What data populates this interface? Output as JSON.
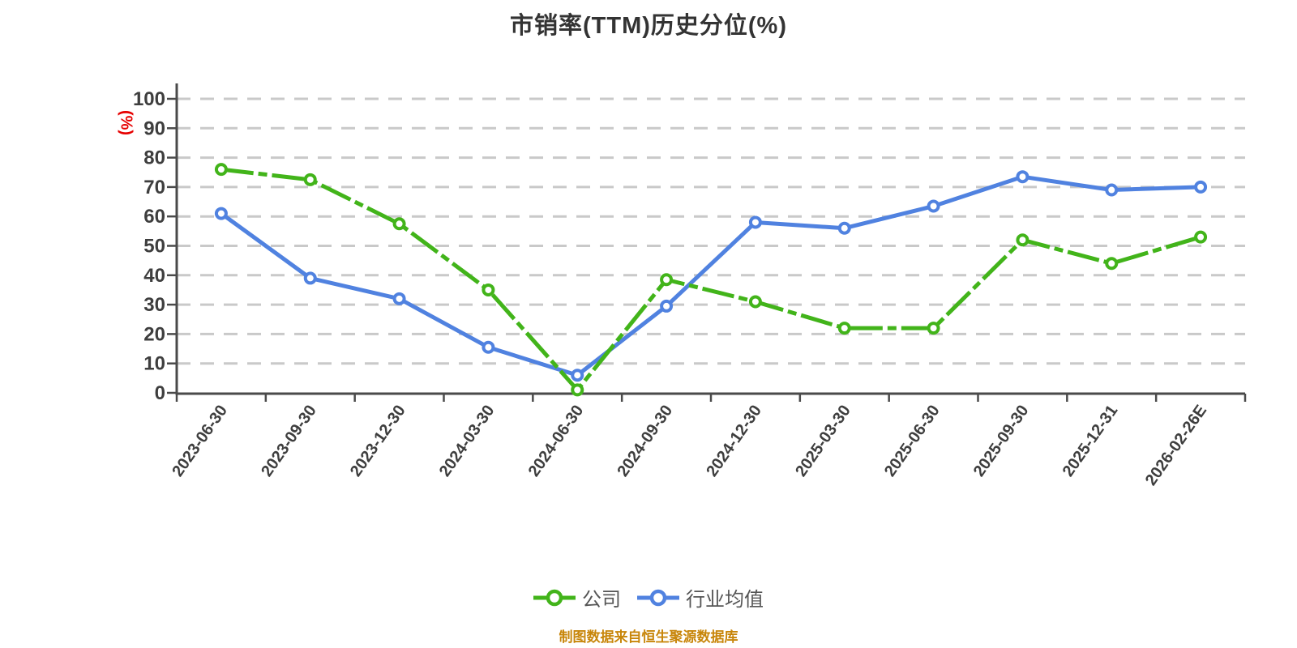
{
  "title": "市销率(TTM)历史分位(%)",
  "y_axis": {
    "unit_label": "(%)",
    "tick_labels": [
      "0",
      "10",
      "20",
      "30",
      "40",
      "50",
      "60",
      "70",
      "80",
      "90",
      "100"
    ]
  },
  "legend": [
    {
      "label": "公司",
      "color": "#42b41a"
    },
    {
      "label": "行业均值",
      "color": "#5082e0"
    }
  ],
  "footer": "制图数据来自恒生聚源数据库",
  "colors": {
    "company_line": "#42b41a",
    "industry_line": "#5082e0",
    "marker_fill": "#ffffff",
    "gridline": "#c9c9c9",
    "axis": "#4a4a4a",
    "axis_text": "#3e3e3e",
    "title_text": "#333333",
    "legend_text": "#555555",
    "footer_text": "#c8860a",
    "y_unit_label": "#e60000"
  },
  "chart_data": {
    "type": "line",
    "title": "市销率(TTM)历史分位(%)",
    "ylabel": "(%)",
    "xlabel": "",
    "ylim": [
      0,
      100
    ],
    "ytick_step": 10,
    "grid": "horizontal-dashed",
    "legend_position": "bottom",
    "x_label_rotation_deg": -55,
    "categories": [
      "2023-06-30",
      "2023-09-30",
      "2023-12-30",
      "2024-03-30",
      "2024-06-30",
      "2024-09-30",
      "2024-12-30",
      "2025-03-30",
      "2025-06-30",
      "2025-09-30",
      "2025-12-31",
      "2026-02-26E"
    ],
    "series": [
      {
        "name": "公司",
        "color": "#42b41a",
        "line_style": "dashdot",
        "values": [
          76,
          72.5,
          57.5,
          35,
          1,
          38.5,
          31,
          22,
          22,
          52,
          44,
          53
        ]
      },
      {
        "name": "行业均值",
        "color": "#5082e0",
        "line_style": "solid",
        "values": [
          61,
          39,
          32,
          15.5,
          6,
          29.5,
          58,
          56,
          63.5,
          73.5,
          69,
          70
        ]
      }
    ]
  }
}
